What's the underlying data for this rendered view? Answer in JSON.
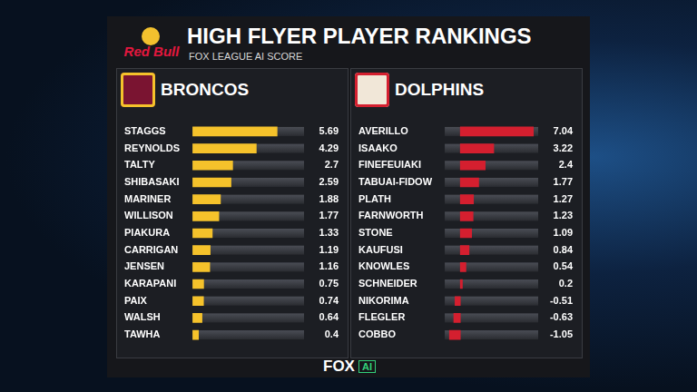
{
  "header": {
    "brand": "Red Bull",
    "title": "HIGH FLYER PLAYER RANKINGS",
    "subtitle": "FOX LEAGUE AI SCORE"
  },
  "chart_data": [
    {
      "type": "bar",
      "title": "BRONCOS",
      "orientation": "horizontal",
      "color": "#f5c22b",
      "categories": [
        "STAGGS",
        "REYNOLDS",
        "TALTY",
        "SHIBASAKI",
        "MARINER",
        "WILLISON",
        "PIAKURA",
        "CARRIGAN",
        "JENSEN",
        "KARAPANI",
        "PAIX",
        "WALSH",
        "TAWHA"
      ],
      "values": [
        5.69,
        4.29,
        2.7,
        2.59,
        1.88,
        1.77,
        1.33,
        1.19,
        1.16,
        0.75,
        0.74,
        0.64,
        0.4
      ],
      "xlim": [
        0,
        7.5
      ],
      "data_labels": true,
      "tick_labels": "y",
      "grid": false
    },
    {
      "type": "bar",
      "title": "DOLPHINS",
      "orientation": "horizontal",
      "color": "#d41f2f",
      "categories": [
        "AVERILLO",
        "ISAAKO",
        "FINEFEUIAKI",
        "TABUAI-FIDOW",
        "PLATH",
        "FARNWORTH",
        "STONE",
        "KAUFUSI",
        "KNOWLES",
        "SCHNEIDER",
        "NIKORIMA",
        "FLEGLER",
        "COBBO"
      ],
      "values": [
        7.04,
        3.22,
        2.4,
        1.77,
        1.27,
        1.23,
        1.09,
        0.84,
        0.54,
        0.2,
        -0.51,
        -0.63,
        -1.05
      ],
      "xlim": [
        -1.5,
        7.5
      ],
      "data_labels": true,
      "tick_labels": "y",
      "grid": false
    }
  ],
  "footer": {
    "brand": "FOX",
    "badge": "AI"
  }
}
